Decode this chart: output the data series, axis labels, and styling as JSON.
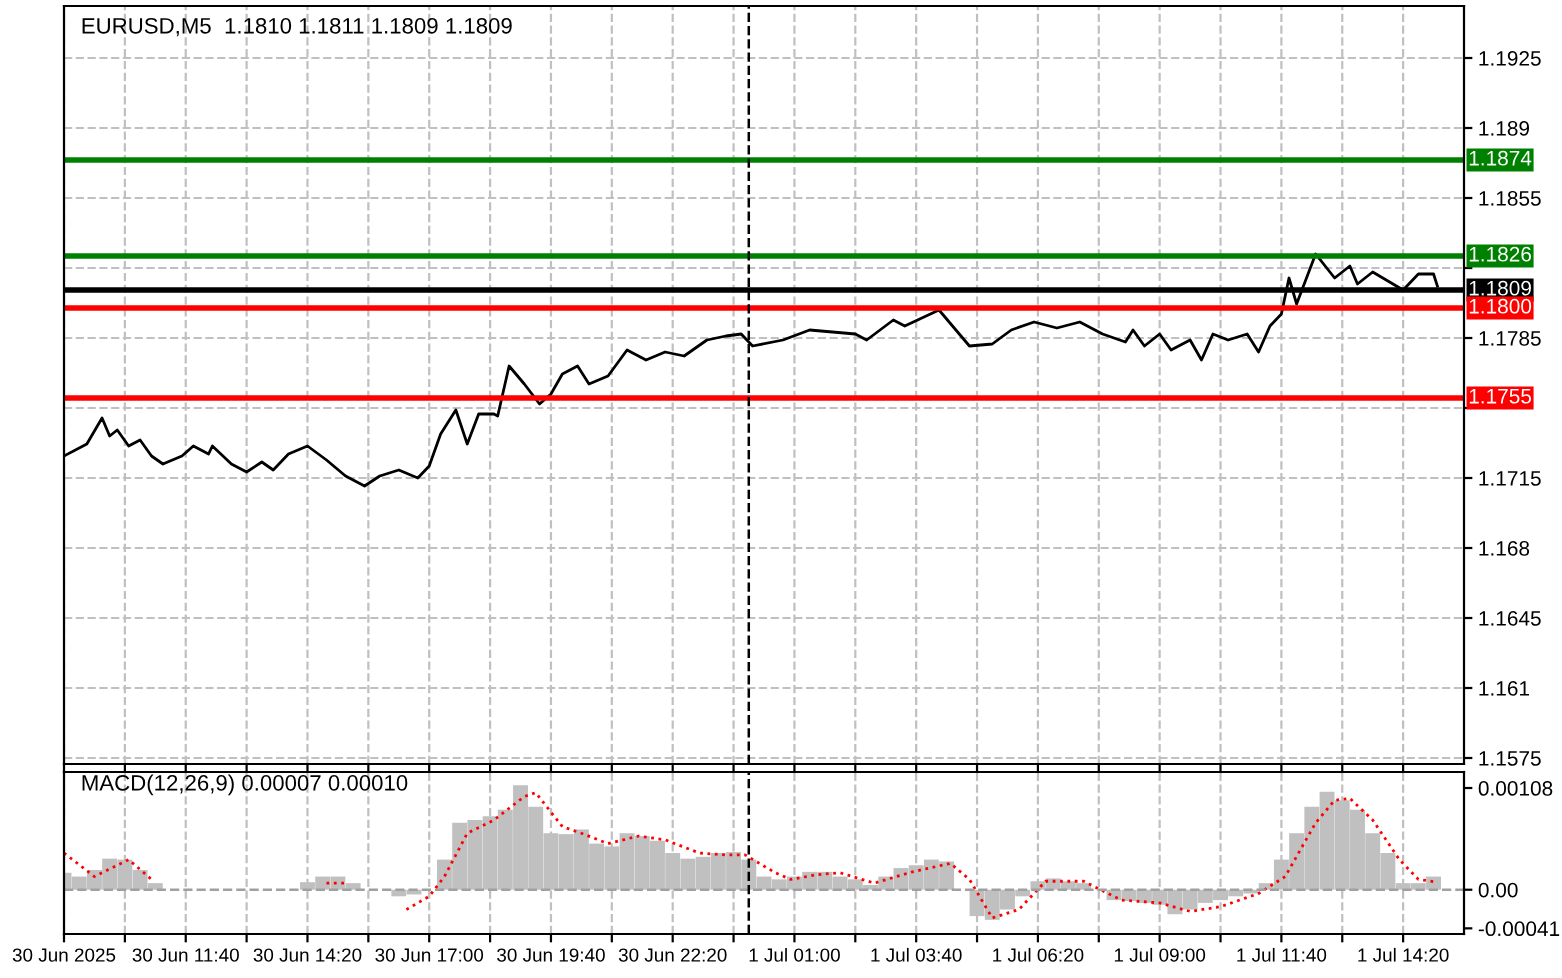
{
  "chart_data": [
    {
      "type": "line",
      "title": "EURUSD,M5  1.1810 1.1811 1.1809 1.1809",
      "grid": true,
      "tick_labels": "y",
      "xlim": [
        "2025-06-30T09:00",
        "2025-07-01T15:40"
      ],
      "ylim": [
        1.1572,
        1.1951
      ],
      "yticks": [
        1.1575,
        1.161,
        1.1645,
        1.168,
        1.1715,
        {
          "value": 1.175,
          "label": null
        },
        1.1785,
        {
          "value": 1.182,
          "label": null
        },
        1.1855,
        1.189,
        1.1925
      ],
      "xticks": [
        "2025-06-30T09:00",
        "2025-06-30T10:20",
        "2025-06-30T11:40",
        "2025-06-30T13:00",
        "2025-06-30T14:20",
        "2025-06-30T15:40",
        "2025-06-30T17:00",
        "2025-06-30T18:20",
        "2025-06-30T19:40",
        "2025-06-30T21:00",
        "2025-06-30T22:20",
        "2025-06-30T23:40",
        "2025-07-01T01:00",
        "2025-07-01T02:20",
        "2025-07-01T03:40",
        "2025-07-01T05:00",
        "2025-07-01T06:20",
        "2025-07-01T07:40",
        "2025-07-01T09:00",
        "2025-07-01T10:20",
        "2025-07-01T11:40",
        "2025-07-01T13:00",
        "2025-07-01T14:20"
      ],
      "ref_lines": [
        {
          "axis": "y",
          "value": 1.1874,
          "label": "1.1874",
          "color": "#008000"
        },
        {
          "axis": "y",
          "value": 1.1826,
          "label": "1.1826",
          "color": "#008000"
        },
        {
          "axis": "y",
          "value": 1.1809,
          "label": "1.1809",
          "color": "#000000"
        },
        {
          "axis": "y",
          "value": 1.18,
          "label": "1.1800",
          "color": "#ff0000"
        },
        {
          "axis": "y",
          "value": 1.1755,
          "label": "1.1755",
          "color": "#ff0000"
        },
        {
          "axis": "x",
          "value": "2025-07-01T00:00",
          "color": "#000000",
          "line_style": "dashed"
        }
      ],
      "series": [
        {
          "color": "#000000",
          "x": [
            "2025-06-30T09:00",
            "2025-06-30T09:30",
            "2025-06-30T09:50",
            "2025-06-30T10:00",
            "2025-06-30T10:10",
            "2025-06-30T10:25",
            "2025-06-30T10:40",
            "2025-06-30T10:55",
            "2025-06-30T11:10",
            "2025-06-30T11:35",
            "2025-06-30T11:50",
            "2025-06-30T12:10",
            "2025-06-30T12:15",
            "2025-06-30T12:40",
            "2025-06-30T13:00",
            "2025-06-30T13:20",
            "2025-06-30T13:35",
            "2025-06-30T13:55",
            "2025-06-30T14:20",
            "2025-06-30T14:45",
            "2025-06-30T15:10",
            "2025-06-30T15:35",
            "2025-06-30T15:55",
            "2025-06-30T16:20",
            "2025-06-30T16:45",
            "2025-06-30T17:00",
            "2025-06-30T17:15",
            "2025-06-30T17:35",
            "2025-06-30T17:50",
            "2025-06-30T18:05",
            "2025-06-30T18:25",
            "2025-06-30T18:30",
            "2025-06-30T18:45",
            "2025-06-30T19:05",
            "2025-06-30T19:25",
            "2025-06-30T19:40",
            "2025-06-30T19:55",
            "2025-06-30T20:15",
            "2025-06-30T20:30",
            "2025-06-30T20:55",
            "2025-06-30T21:20",
            "2025-06-30T21:45",
            "2025-06-30T22:10",
            "2025-06-30T22:35",
            "2025-06-30T23:05",
            "2025-06-30T23:30",
            "2025-06-30T23:50",
            "2025-07-01T00:05",
            "2025-07-01T00:45",
            "2025-07-01T01:20",
            "2025-07-01T02:20",
            "2025-07-01T02:35",
            "2025-07-01T03:10",
            "2025-07-01T03:25",
            "2025-07-01T04:10",
            "2025-07-01T04:50",
            "2025-07-01T05:20",
            "2025-07-01T05:45",
            "2025-07-01T06:15",
            "2025-07-01T06:45",
            "2025-07-01T07:15",
            "2025-07-01T07:45",
            "2025-07-01T08:15",
            "2025-07-01T08:25",
            "2025-07-01T08:40",
            "2025-07-01T09:00",
            "2025-07-01T09:15",
            "2025-07-01T09:40",
            "2025-07-01T09:55",
            "2025-07-01T10:10",
            "2025-07-01T10:30",
            "2025-07-01T10:55",
            "2025-07-01T11:10",
            "2025-07-01T11:25",
            "2025-07-01T11:40",
            "2025-07-01T11:50",
            "2025-07-01T12:00",
            "2025-07-01T12:25",
            "2025-07-01T12:50",
            "2025-07-01T13:10",
            "2025-07-01T13:20",
            "2025-07-01T13:40",
            "2025-07-01T14:20",
            "2025-07-01T14:40",
            "2025-07-01T15:00",
            "2025-07-01T15:05"
          ],
          "values": [
            1.1726,
            1.1732,
            1.1745,
            1.1736,
            1.1739,
            1.1731,
            1.1734,
            1.1726,
            1.1722,
            1.1726,
            1.1731,
            1.1727,
            1.1731,
            1.1722,
            1.1718,
            1.1723,
            1.1719,
            1.1727,
            1.1731,
            1.1724,
            1.1716,
            1.1711,
            1.1716,
            1.1719,
            1.1715,
            1.1721,
            1.1737,
            1.1749,
            1.1732,
            1.1747,
            1.1747,
            1.1746,
            1.1771,
            1.1762,
            1.1752,
            1.1757,
            1.1767,
            1.1771,
            1.1762,
            1.1766,
            1.1779,
            1.1774,
            1.1778,
            1.1776,
            1.1784,
            1.1786,
            1.1787,
            1.1781,
            1.1784,
            1.1789,
            1.1787,
            1.1784,
            1.1794,
            1.1791,
            1.1799,
            1.1781,
            1.1782,
            1.1789,
            1.1793,
            1.179,
            1.1793,
            1.1787,
            1.1783,
            1.1789,
            1.1781,
            1.1787,
            1.1779,
            1.1784,
            1.1774,
            1.1787,
            1.1784,
            1.1787,
            1.1778,
            1.1791,
            1.1797,
            1.1815,
            1.1802,
            1.1827,
            1.1815,
            1.1821,
            1.1812,
            1.1818,
            1.1809,
            1.1817,
            1.1817,
            1.1811
          ]
        }
      ]
    },
    {
      "type": "bar",
      "title": "MACD(12,26,9) 0.00007 0.00010",
      "grid": "x",
      "xlim": [
        "2025-06-30T09:00",
        "2025-07-01T15:40"
      ],
      "ylim": [
        -0.00047,
        0.00125
      ],
      "yticks": [
        {
          "value": -0.00041,
          "label": "-0.00041"
        },
        {
          "value": 0,
          "label": "0.00"
        },
        0.00108
      ],
      "xticks": [
        {
          "value": "2025-06-30T09:00",
          "label": "30 Jun 2025"
        },
        {
          "value": "2025-06-30T10:20",
          "label": null
        },
        {
          "value": "2025-06-30T11:40",
          "label": "30 Jun 11:40"
        },
        {
          "value": "2025-06-30T13:00",
          "label": null
        },
        {
          "value": "2025-06-30T14:20",
          "label": "30 Jun 14:20"
        },
        {
          "value": "2025-06-30T15:40",
          "label": null
        },
        {
          "value": "2025-06-30T17:00",
          "label": "30 Jun 17:00"
        },
        {
          "value": "2025-06-30T18:20",
          "label": null
        },
        {
          "value": "2025-06-30T19:40",
          "label": "30 Jun 19:40"
        },
        {
          "value": "2025-06-30T21:00",
          "label": null
        },
        {
          "value": "2025-06-30T22:20",
          "label": "30 Jun 22:20"
        },
        {
          "value": "2025-06-30T23:40",
          "label": null
        },
        {
          "value": "2025-07-01T01:00",
          "label": "1 Jul 01:00"
        },
        {
          "value": "2025-07-01T02:20",
          "label": null
        },
        {
          "value": "2025-07-01T03:40",
          "label": "1 Jul 03:40"
        },
        {
          "value": "2025-07-01T05:00",
          "label": null
        },
        {
          "value": "2025-07-01T06:20",
          "label": "1 Jul 06:20"
        },
        {
          "value": "2025-07-01T07:40",
          "label": null
        },
        {
          "value": "2025-07-01T09:00",
          "label": "1 Jul 09:00"
        },
        {
          "value": "2025-07-01T10:20",
          "label": null
        },
        {
          "value": "2025-07-01T11:40",
          "label": "1 Jul 11:40"
        },
        {
          "value": "2025-07-01T13:00",
          "label": null
        },
        {
          "value": "2025-07-01T14:20",
          "label": "1 Jul 14:20"
        }
      ],
      "ref_lines": [
        {
          "axis": "y",
          "value": 0,
          "color": "#a0a0a0",
          "line_style": "dashed"
        },
        {
          "axis": "x",
          "value": "2025-07-01T00:00",
          "color": "#000000",
          "line_style": "dashed"
        }
      ],
      "series": [
        {
          "color": "#c0c0c0",
          "x": [
            "2025-06-30T09:00",
            "2025-06-30T09:20",
            "2025-06-30T09:40",
            "2025-06-30T10:00",
            "2025-06-30T10:20",
            "2025-06-30T10:40",
            "2025-06-30T11:00",
            "2025-06-30T11:20",
            "2025-06-30T11:40",
            "2025-06-30T12:00",
            "2025-06-30T12:20",
            "2025-06-30T12:40",
            "2025-06-30T13:00",
            "2025-06-30T13:20",
            "2025-06-30T13:40",
            "2025-06-30T14:00",
            "2025-06-30T14:20",
            "2025-06-30T14:40",
            "2025-06-30T15:00",
            "2025-06-30T15:20",
            "2025-06-30T15:40",
            "2025-06-30T16:00",
            "2025-06-30T16:20",
            "2025-06-30T16:40",
            "2025-06-30T17:00",
            "2025-06-30T17:20",
            "2025-06-30T17:40",
            "2025-06-30T18:00",
            "2025-06-30T18:20",
            "2025-06-30T18:40",
            "2025-06-30T19:00",
            "2025-06-30T19:20",
            "2025-06-30T19:40",
            "2025-06-30T20:00",
            "2025-06-30T20:20",
            "2025-06-30T20:40",
            "2025-06-30T21:00",
            "2025-06-30T21:20",
            "2025-06-30T21:40",
            "2025-06-30T22:00",
            "2025-06-30T22:20",
            "2025-06-30T22:40",
            "2025-06-30T23:00",
            "2025-06-30T23:20",
            "2025-06-30T23:40",
            "2025-07-01T00:00",
            "2025-07-01T00:20",
            "2025-07-01T00:40",
            "2025-07-01T01:00",
            "2025-07-01T01:20",
            "2025-07-01T01:40",
            "2025-07-01T02:00",
            "2025-07-01T02:20",
            "2025-07-01T02:40",
            "2025-07-01T03:00",
            "2025-07-01T03:20",
            "2025-07-01T03:40",
            "2025-07-01T04:00",
            "2025-07-01T04:20",
            "2025-07-01T04:40",
            "2025-07-01T05:00",
            "2025-07-01T05:20",
            "2025-07-01T05:40",
            "2025-07-01T06:00",
            "2025-07-01T06:20",
            "2025-07-01T06:40",
            "2025-07-01T07:00",
            "2025-07-01T07:20",
            "2025-07-01T07:40",
            "2025-07-01T08:00",
            "2025-07-01T08:20",
            "2025-07-01T08:40",
            "2025-07-01T09:00",
            "2025-07-01T09:20",
            "2025-07-01T09:40",
            "2025-07-01T10:00",
            "2025-07-01T10:20",
            "2025-07-01T10:40",
            "2025-07-01T11:00",
            "2025-07-01T11:20",
            "2025-07-01T11:40",
            "2025-07-01T12:00",
            "2025-07-01T12:20",
            "2025-07-01T12:40",
            "2025-07-01T13:00",
            "2025-07-01T13:20",
            "2025-07-01T13:40",
            "2025-07-01T14:00",
            "2025-07-01T14:20",
            "2025-07-01T14:40",
            "2025-07-01T15:00"
          ],
          "values": [
            0.00018,
            0.00014,
            0.00021,
            0.00033,
            0.00032,
            0.00021,
            7e-05,
            0,
            null,
            null,
            null,
            null,
            null,
            null,
            null,
            null,
            8e-05,
            0.00014,
            0.00014,
            7e-05,
            null,
            null,
            -7e-05,
            -5e-05,
            null,
            0.00032,
            0.00071,
            0.00074,
            0.00078,
            0.00085,
            0.00111,
            0.00088,
            0.0006,
            0.00059,
            0.00064,
            0.00049,
            0.00046,
            0.0006,
            0.00057,
            0.00052,
            0.00039,
            0.00033,
            0.00035,
            0.00039,
            0.0004,
            0.00032,
            0.00014,
            0.00011,
            0.00014,
            0.00019,
            0.00019,
            0.00014,
            0.00011,
            5e-05,
            0.00014,
            0.00023,
            0.00026,
            0.00032,
            0.0003,
            0,
            -0.00028,
            -0.00032,
            -0.00021,
            -7e-05,
            9e-05,
            0.00012,
            9e-05,
            7e-05,
            null,
            -0.00011,
            -0.00012,
            -0.00014,
            -0.00016,
            -0.00026,
            -0.00021,
            -0.00014,
            -0.00011,
            -7e-05,
            -4e-05,
            7e-05,
            0.00032,
            0.0006,
            0.00088,
            0.00104,
            0.00095,
            0.00085,
            0.0006,
            0.00039,
            7e-05,
            7e-05,
            0.00014
          ]
        },
        {
          "type": "line",
          "color": "#ff0000",
          "line_style": "dotted",
          "x": [
            "2025-06-30T09:00",
            "2025-06-30T09:40",
            "2025-06-30T10:25",
            "2025-06-30T10:55",
            "2025-06-30T13:00",
            "2025-06-30T14:45",
            "2025-06-30T15:10",
            "2025-06-30T15:55",
            "2025-06-30T16:30",
            "2025-06-30T17:00",
            "2025-06-30T17:20",
            "2025-06-30T17:50",
            "2025-06-30T18:25",
            "2025-06-30T19:05",
            "2025-06-30T19:20",
            "2025-06-30T19:55",
            "2025-06-30T20:20",
            "2025-06-30T20:55",
            "2025-06-30T21:35",
            "2025-06-30T22:10",
            "2025-06-30T22:55",
            "2025-06-30T23:30",
            "2025-06-30T23:55",
            "2025-07-01T00:35",
            "2025-07-01T00:55",
            "2025-07-01T01:30",
            "2025-07-01T02:00",
            "2025-07-01T02:45",
            "2025-07-01T03:35",
            "2025-07-01T04:25",
            "2025-07-01T04:50",
            "2025-07-01T05:20",
            "2025-07-01T05:55",
            "2025-07-01T06:30",
            "2025-07-01T07:20",
            "2025-07-01T08:10",
            "2025-07-01T09:00",
            "2025-07-01T09:40",
            "2025-07-01T10:20",
            "2025-07-01T11:10",
            "2025-07-01T11:45",
            "2025-07-01T12:25",
            "2025-07-01T12:50",
            "2025-07-01T13:10",
            "2025-07-01T13:40",
            "2025-07-01T14:15",
            "2025-07-01T14:40",
            "2025-07-01T15:05"
          ],
          "values": [
            0.00039,
            0.00014,
            0.00032,
            0.00011,
            null,
            7e-05,
            7e-05,
            null,
            -0.00021,
            -7e-05,
            0.00014,
            0.0006,
            0.00074,
            0.00099,
            0.00103,
            0.00067,
            0.0006,
            0.00049,
            0.00057,
            0.00053,
            0.00039,
            0.00037,
            0.00037,
            0.00018,
            0.00011,
            0.00016,
            0.00018,
            7e-05,
            0.00019,
            0.00028,
            0.00011,
            -0.0003,
            -0.00021,
            9e-05,
            9e-05,
            -0.00011,
            -0.00014,
            -0.00023,
            -0.00018,
            -4e-05,
            0.00014,
            0.00071,
            0.00095,
            0.00097,
            0.00074,
            0.00032,
            0.00011,
            8e-05
          ]
        }
      ]
    }
  ]
}
